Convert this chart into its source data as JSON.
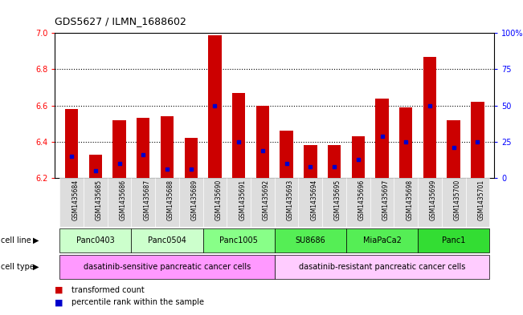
{
  "title": "GDS5627 / ILMN_1688602",
  "samples": [
    "GSM1435684",
    "GSM1435685",
    "GSM1435686",
    "GSM1435687",
    "GSM1435688",
    "GSM1435689",
    "GSM1435690",
    "GSM1435691",
    "GSM1435692",
    "GSM1435693",
    "GSM1435694",
    "GSM1435695",
    "GSM1435696",
    "GSM1435697",
    "GSM1435698",
    "GSM1435699",
    "GSM1435700",
    "GSM1435701"
  ],
  "bar_values": [
    6.58,
    6.33,
    6.52,
    6.53,
    6.54,
    6.42,
    6.99,
    6.67,
    6.6,
    6.46,
    6.38,
    6.38,
    6.43,
    6.64,
    6.59,
    6.87,
    6.52,
    6.62
  ],
  "blue_dot_values": [
    6.32,
    6.24,
    6.28,
    6.33,
    6.25,
    6.25,
    6.6,
    6.4,
    6.35,
    6.28,
    6.26,
    6.26,
    6.3,
    6.43,
    6.4,
    6.6,
    6.37,
    6.4
  ],
  "bar_bottom": 6.2,
  "ylim_left": [
    6.2,
    7.0
  ],
  "ylim_right": [
    0,
    100
  ],
  "yticks_left": [
    6.2,
    6.4,
    6.6,
    6.8,
    7.0
  ],
  "yticks_right": [
    0,
    25,
    50,
    75,
    100
  ],
  "ytick_labels_right": [
    "0",
    "25",
    "50",
    "75",
    "100%"
  ],
  "cell_line_groups": [
    {
      "label": "Panc0403",
      "start": 0,
      "end": 2,
      "color": "#ccffcc"
    },
    {
      "label": "Panc0504",
      "start": 3,
      "end": 5,
      "color": "#ccffcc"
    },
    {
      "label": "Panc1005",
      "start": 6,
      "end": 8,
      "color": "#88ff88"
    },
    {
      "label": "SU8686",
      "start": 9,
      "end": 11,
      "color": "#55ee55"
    },
    {
      "label": "MiaPaCa2",
      "start": 12,
      "end": 14,
      "color": "#55ee55"
    },
    {
      "label": "Panc1",
      "start": 15,
      "end": 17,
      "color": "#33dd33"
    }
  ],
  "cell_type_groups": [
    {
      "label": "dasatinib-sensitive pancreatic cancer cells",
      "start": 0,
      "end": 8,
      "color": "#ff99ff"
    },
    {
      "label": "dasatinib-resistant pancreatic cancer cells",
      "start": 9,
      "end": 17,
      "color": "#ffccff"
    }
  ],
  "bar_color": "#cc0000",
  "dot_color": "#0000cc",
  "sample_box_color": "#dddddd",
  "grid_dotted_at": [
    6.4,
    6.6,
    6.8
  ],
  "legend": [
    {
      "color": "#cc0000",
      "label": "transformed count"
    },
    {
      "color": "#0000cc",
      "label": "percentile rank within the sample"
    }
  ]
}
